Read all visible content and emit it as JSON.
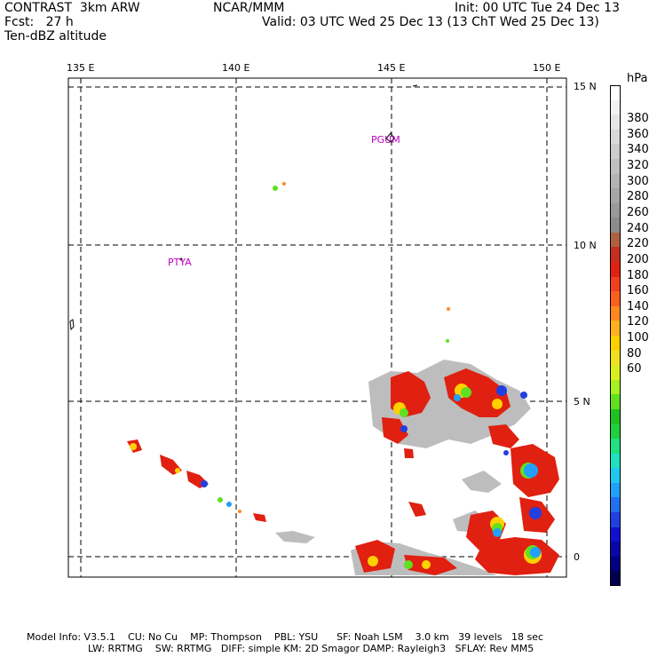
{
  "header": {
    "left_line1": "CONTRAST  3km ARW",
    "left_line2": "Fcst:   27 h",
    "left_line3": "Ten-dBZ altitude",
    "center_line1": "NCAR/MMM",
    "right_line1": "Init: 00 UTC Tue 24 Dec 13",
    "right_line2": "Valid: 03 UTC Wed 25 Dec 13 (13 ChT Wed 25 Dec 13)"
  },
  "map": {
    "lon_labels": [
      "135 E",
      "140 E",
      "145 E",
      "150 E"
    ],
    "lat_labels": [
      "15 N",
      "10 N",
      "5 N",
      "0"
    ],
    "station_labels": [
      "PGUM",
      "PTYA"
    ]
  },
  "colorbar": {
    "unit": "hPa",
    "tick_labels": [
      "380",
      "360",
      "340",
      "320",
      "300",
      "280",
      "260",
      "240",
      "220",
      "200",
      "180",
      "160",
      "140",
      "120",
      "100",
      "80",
      "60"
    ],
    "colors": [
      "#ffffff",
      "#f2f2f2",
      "#e6e6e6",
      "#d9d9d9",
      "#cccccc",
      "#bfbfbf",
      "#b3b3b3",
      "#a6a6a6",
      "#999999",
      "#8c8c8c",
      "#b06040",
      "#c43020",
      "#e02010",
      "#f04020",
      "#f86020",
      "#ff8820",
      "#ffb020",
      "#ffd000",
      "#f0e020",
      "#d8f020",
      "#a8f020",
      "#60e020",
      "#20c020",
      "#20d040",
      "#20e080",
      "#20e0c0",
      "#20c8f0",
      "#20a0f8",
      "#2070f0",
      "#2040e0",
      "#1010d0",
      "#0808a8",
      "#000080",
      "#000050"
    ]
  },
  "footer": {
    "line1": "Model Info: V3.5.1    CU: No Cu    MP: Thompson    PBL: YSU      SF: Noah LSM    3.0 km   39 levels   18 sec",
    "line2": "LW: RRTMG    SW: RRTMG   DIFF: simple KM: 2D Smagor DAMP: Rayleigh3   SFLAY: Rev MM5"
  }
}
